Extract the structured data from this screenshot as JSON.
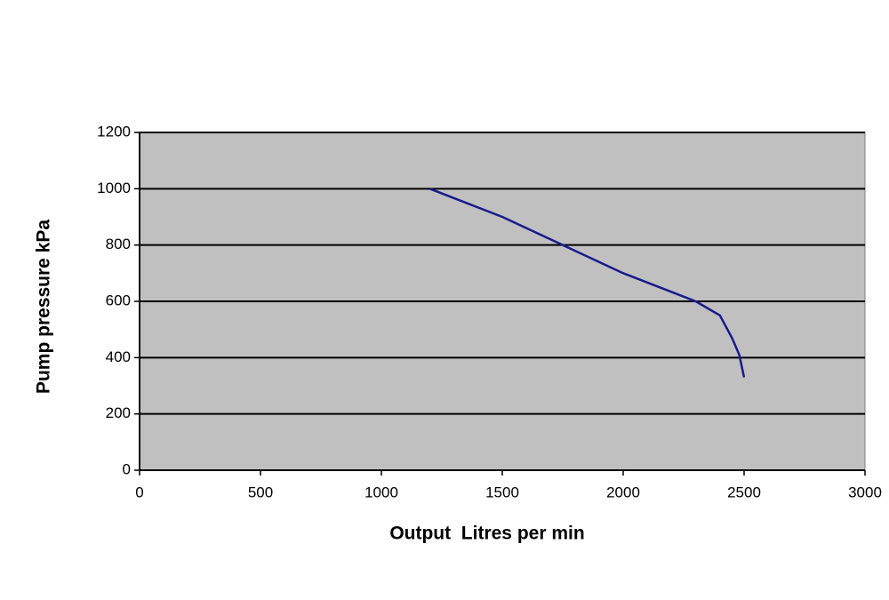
{
  "chart_data": {
    "type": "line",
    "x_label": "Output  Litres per min",
    "y_label": "Pump pressure kPa",
    "series": [
      {
        "color": "#1a1a8c",
        "x": [
          1200,
          1500,
          1750,
          2000,
          2300,
          2400,
          2450,
          2480,
          2500
        ],
        "values": [
          1000,
          900,
          800,
          700,
          600,
          550,
          470,
          410,
          330
        ]
      }
    ],
    "xlim": [
      0,
      3000
    ],
    "xticks": [
      0,
      500,
      1000,
      1500,
      2000,
      2500,
      3000
    ],
    "ylim": [
      0,
      1200
    ],
    "yticks": [
      0,
      200,
      400,
      600,
      800,
      1000,
      1200
    ],
    "grid": true,
    "plot_background": "#c0c0c0"
  }
}
